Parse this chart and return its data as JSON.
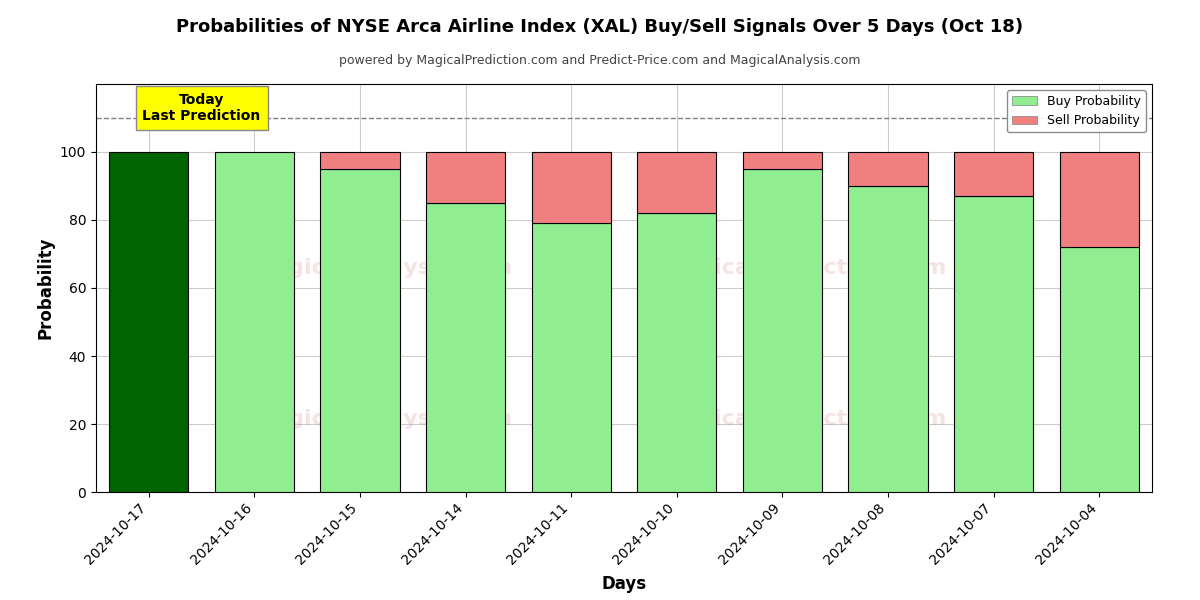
{
  "title": "Probabilities of NYSE Arca Airline Index (XAL) Buy/Sell Signals Over 5 Days (Oct 18)",
  "subtitle": "powered by MagicalPrediction.com and Predict-Price.com and MagicalAnalysis.com",
  "xlabel": "Days",
  "ylabel": "Probability",
  "dates": [
    "2024-10-17",
    "2024-10-16",
    "2024-10-15",
    "2024-10-14",
    "2024-10-11",
    "2024-10-10",
    "2024-10-09",
    "2024-10-08",
    "2024-10-07",
    "2024-10-04"
  ],
  "buy_probs": [
    100,
    100,
    95,
    85,
    79,
    82,
    95,
    90,
    87,
    72
  ],
  "sell_probs": [
    0,
    0,
    5,
    15,
    21,
    18,
    5,
    10,
    13,
    28
  ],
  "today_idx": 0,
  "today_bar_color": "#006400",
  "buy_color": "#90EE90",
  "sell_color": "#F08080",
  "today_label": "Today\nLast Prediction",
  "today_label_bg": "#FFFF00",
  "dashed_line_y": 110,
  "ylim": [
    0,
    120
  ],
  "yticks": [
    0,
    20,
    40,
    60,
    80,
    100
  ],
  "grid_color": "#cccccc",
  "bar_edge_color": "#000000",
  "legend_buy_color": "#90EE90",
  "legend_sell_color": "#F08080",
  "fig_width": 12,
  "fig_height": 6,
  "background_color": "#ffffff"
}
